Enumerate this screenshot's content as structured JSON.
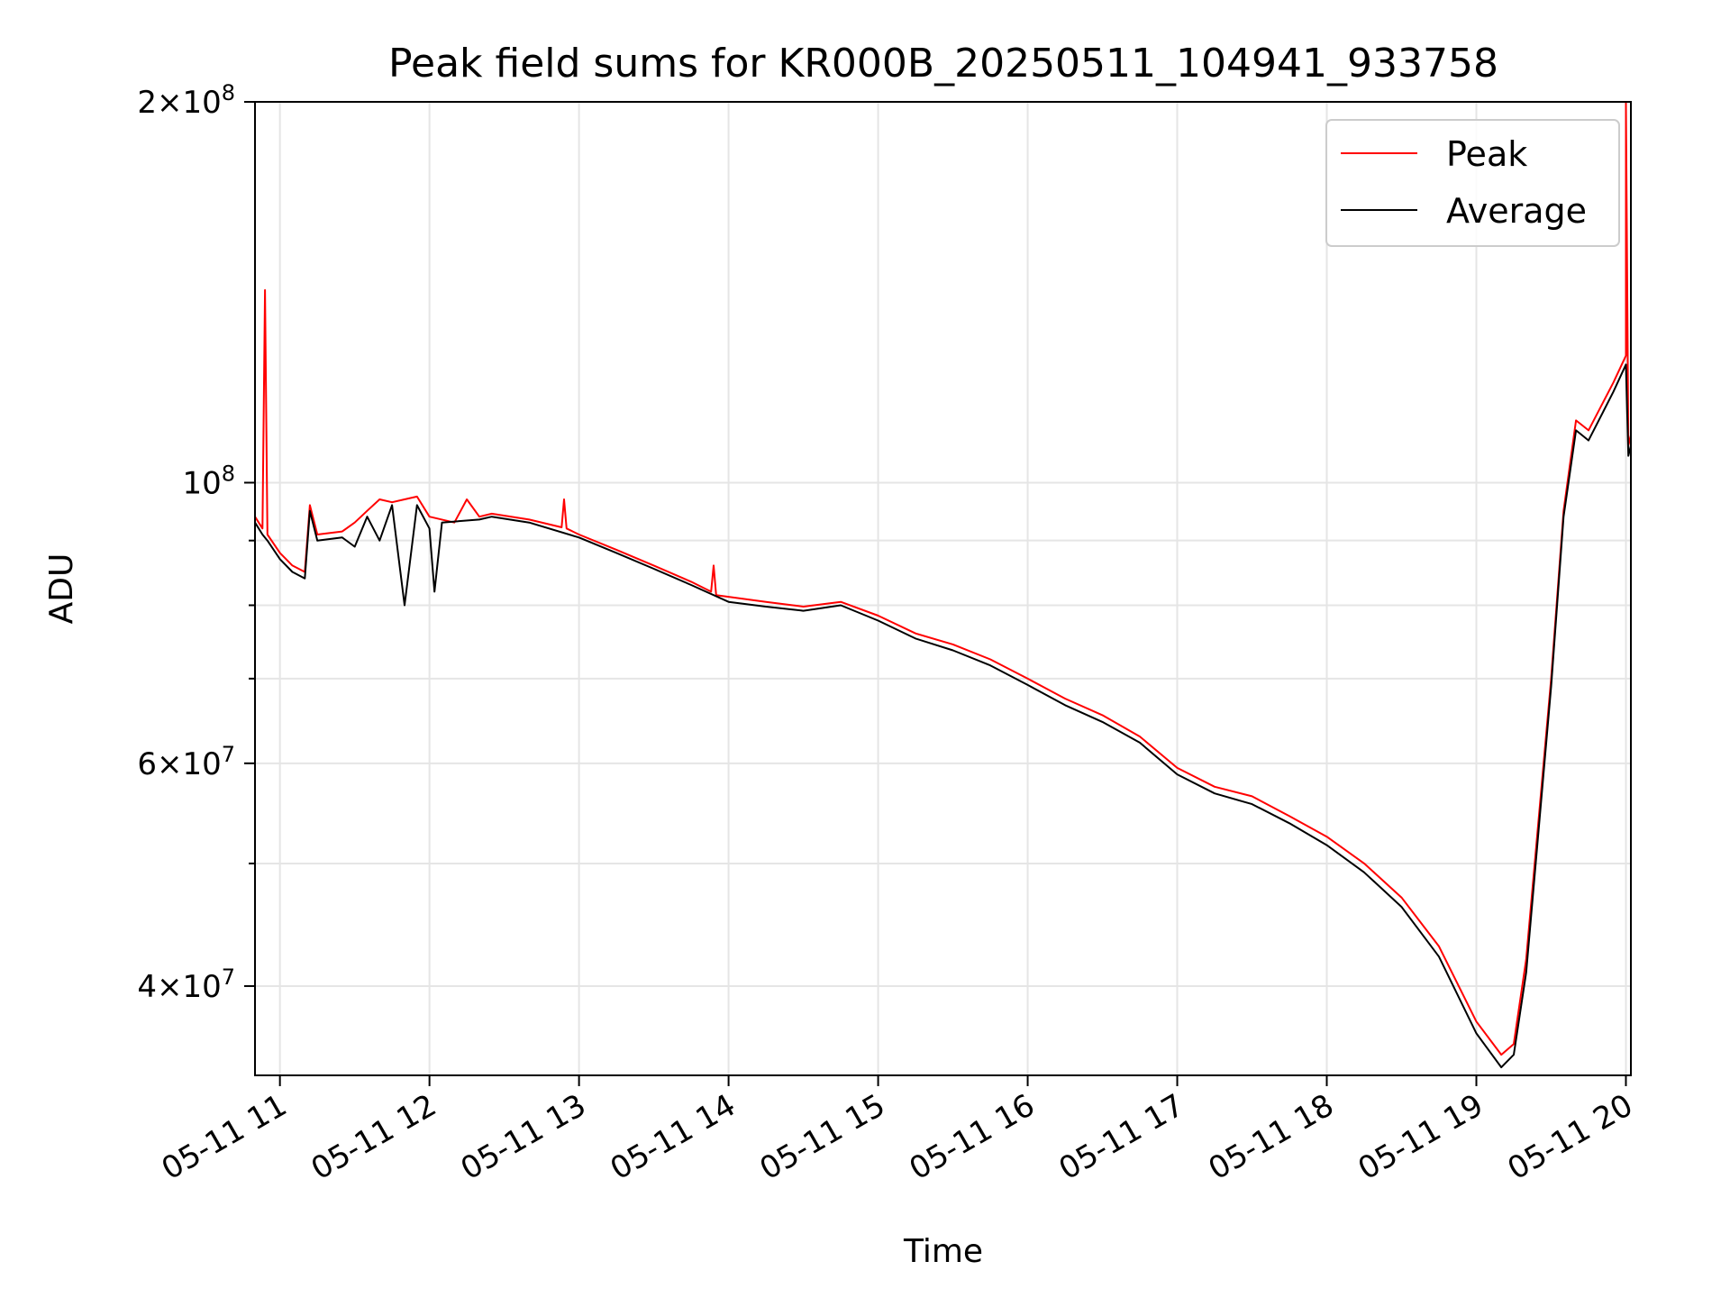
{
  "chart_data": {
    "type": "line",
    "title": "Peak field sums for KR000B_20250511_104941_933758",
    "xlabel": "Time",
    "ylabel": "ADU",
    "yscale": "log",
    "ylim": [
      34000000,
      200000000
    ],
    "xlim": [
      "05-11 10:50",
      "05-11 20:02"
    ],
    "grid": true,
    "legend_position": "top-right",
    "x_ticks": [
      "05-11 11",
      "05-11 12",
      "05-11 13",
      "05-11 14",
      "05-11 15",
      "05-11 16",
      "05-11 17",
      "05-11 18",
      "05-11 19",
      "05-11 20"
    ],
    "y_ticks_major": [
      {
        "value": 40000000,
        "mant": "4",
        "exp": "7"
      },
      {
        "value": 60000000,
        "mant": "6",
        "exp": "7"
      },
      {
        "value": 100000000,
        "mant": "",
        "exp": "8"
      },
      {
        "value": 200000000,
        "mant": "2",
        "exp": "8"
      }
    ],
    "y_ticks_minor": [
      50000000,
      70000000,
      80000000,
      90000000
    ],
    "series": [
      {
        "name": "Peak",
        "color": "#ff0000",
        "points": [
          [
            "05-11 10:50",
            94000000
          ],
          [
            "05-11 10:53",
            92000000
          ],
          [
            "05-11 10:54",
            142000000
          ],
          [
            "05-11 10:55",
            91000000
          ],
          [
            "05-11 11:00",
            88000000
          ],
          [
            "05-11 11:05",
            86000000
          ],
          [
            "05-11 11:10",
            85000000
          ],
          [
            "05-11 11:12",
            96000000
          ],
          [
            "05-11 11:15",
            91000000
          ],
          [
            "05-11 11:25",
            91500000
          ],
          [
            "05-11 11:30",
            93000000
          ],
          [
            "05-11 11:35",
            95000000
          ],
          [
            "05-11 11:40",
            97000000
          ],
          [
            "05-11 11:45",
            96500000
          ],
          [
            "05-11 11:50",
            97000000
          ],
          [
            "05-11 11:55",
            97500000
          ],
          [
            "05-11 12:00",
            94000000
          ],
          [
            "05-11 12:10",
            93000000
          ],
          [
            "05-11 12:15",
            97000000
          ],
          [
            "05-11 12:20",
            94000000
          ],
          [
            "05-11 12:25",
            94500000
          ],
          [
            "05-11 12:40",
            93500000
          ],
          [
            "05-11 12:53",
            92200000
          ],
          [
            "05-11 12:54",
            97000000
          ],
          [
            "05-11 12:55",
            92000000
          ],
          [
            "05-11 13:00",
            91000000
          ],
          [
            "05-11 13:15",
            88500000
          ],
          [
            "05-11 13:30",
            86000000
          ],
          [
            "05-11 13:45",
            83500000
          ],
          [
            "05-11 13:53",
            82000000
          ],
          [
            "05-11 13:54",
            86000000
          ],
          [
            "05-11 13:55",
            81500000
          ],
          [
            "05-11 14:15",
            80500000
          ],
          [
            "05-11 14:30",
            79800000
          ],
          [
            "05-11 14:45",
            80500000
          ],
          [
            "05-11 15:00",
            78500000
          ],
          [
            "05-11 15:15",
            76000000
          ],
          [
            "05-11 15:30",
            74500000
          ],
          [
            "05-11 15:45",
            72500000
          ],
          [
            "05-11 16:00",
            70000000
          ],
          [
            "05-11 16:15",
            67500000
          ],
          [
            "05-11 16:30",
            65500000
          ],
          [
            "05-11 16:45",
            63000000
          ],
          [
            "05-11 17:00",
            59500000
          ],
          [
            "05-11 17:15",
            57500000
          ],
          [
            "05-11 17:30",
            56500000
          ],
          [
            "05-11 17:45",
            54500000
          ],
          [
            "05-11 18:00",
            52500000
          ],
          [
            "05-11 18:15",
            50000000
          ],
          [
            "05-11 18:30",
            47000000
          ],
          [
            "05-11 18:45",
            43000000
          ],
          [
            "05-11 19:00",
            37500000
          ],
          [
            "05-11 19:10",
            35300000
          ],
          [
            "05-11 19:15",
            36000000
          ],
          [
            "05-11 19:20",
            42000000
          ],
          [
            "05-11 19:30",
            70000000
          ],
          [
            "05-11 19:35",
            95000000
          ],
          [
            "05-11 19:40",
            112000000
          ],
          [
            "05-11 19:45",
            110000000
          ],
          [
            "05-11 19:55",
            120000000
          ],
          [
            "05-11 20:00",
            126000000
          ],
          [
            "05-11 20:00",
            200000000
          ],
          [
            "05-11 20:01",
            107000000
          ],
          [
            "05-11 20:02",
            109000000
          ]
        ]
      },
      {
        "name": "Average",
        "color": "#000000",
        "points": [
          [
            "05-11 10:50",
            93000000
          ],
          [
            "05-11 10:53",
            91000000
          ],
          [
            "05-11 10:55",
            90000000
          ],
          [
            "05-11 11:00",
            87000000
          ],
          [
            "05-11 11:05",
            85000000
          ],
          [
            "05-11 11:10",
            84000000
          ],
          [
            "05-11 11:12",
            95000000
          ],
          [
            "05-11 11:15",
            90000000
          ],
          [
            "05-11 11:25",
            90500000
          ],
          [
            "05-11 11:30",
            89000000
          ],
          [
            "05-11 11:35",
            94000000
          ],
          [
            "05-11 11:40",
            90000000
          ],
          [
            "05-11 11:45",
            96000000
          ],
          [
            "05-11 11:50",
            80000000
          ],
          [
            "05-11 11:55",
            96000000
          ],
          [
            "05-11 12:00",
            92000000
          ],
          [
            "05-11 12:02",
            82000000
          ],
          [
            "05-11 12:05",
            93000000
          ],
          [
            "05-11 12:20",
            93500000
          ],
          [
            "05-11 12:25",
            94000000
          ],
          [
            "05-11 12:40",
            93000000
          ],
          [
            "05-11 13:00",
            90500000
          ],
          [
            "05-11 13:15",
            88000000
          ],
          [
            "05-11 13:30",
            85500000
          ],
          [
            "05-11 13:45",
            83000000
          ],
          [
            "05-11 14:00",
            80500000
          ],
          [
            "05-11 14:15",
            79800000
          ],
          [
            "05-11 14:30",
            79200000
          ],
          [
            "05-11 14:45",
            80000000
          ],
          [
            "05-11 15:00",
            77800000
          ],
          [
            "05-11 15:15",
            75300000
          ],
          [
            "05-11 15:30",
            73700000
          ],
          [
            "05-11 15:45",
            71700000
          ],
          [
            "05-11 16:00",
            69200000
          ],
          [
            "05-11 16:15",
            66700000
          ],
          [
            "05-11 16:30",
            64700000
          ],
          [
            "05-11 16:45",
            62300000
          ],
          [
            "05-11 17:00",
            58800000
          ],
          [
            "05-11 17:15",
            56800000
          ],
          [
            "05-11 17:30",
            55700000
          ],
          [
            "05-11 17:45",
            53800000
          ],
          [
            "05-11 18:00",
            51700000
          ],
          [
            "05-11 18:15",
            49200000
          ],
          [
            "05-11 18:30",
            46200000
          ],
          [
            "05-11 18:45",
            42200000
          ],
          [
            "05-11 19:00",
            36700000
          ],
          [
            "05-11 19:10",
            34500000
          ],
          [
            "05-11 19:15",
            35300000
          ],
          [
            "05-11 19:20",
            41000000
          ],
          [
            "05-11 19:30",
            69000000
          ],
          [
            "05-11 19:35",
            94000000
          ],
          [
            "05-11 19:40",
            110000000
          ],
          [
            "05-11 19:45",
            108000000
          ],
          [
            "05-11 19:55",
            118000000
          ],
          [
            "05-11 20:00",
            124000000
          ],
          [
            "05-11 20:01",
            105000000
          ],
          [
            "05-11 20:02",
            107000000
          ]
        ]
      }
    ]
  }
}
